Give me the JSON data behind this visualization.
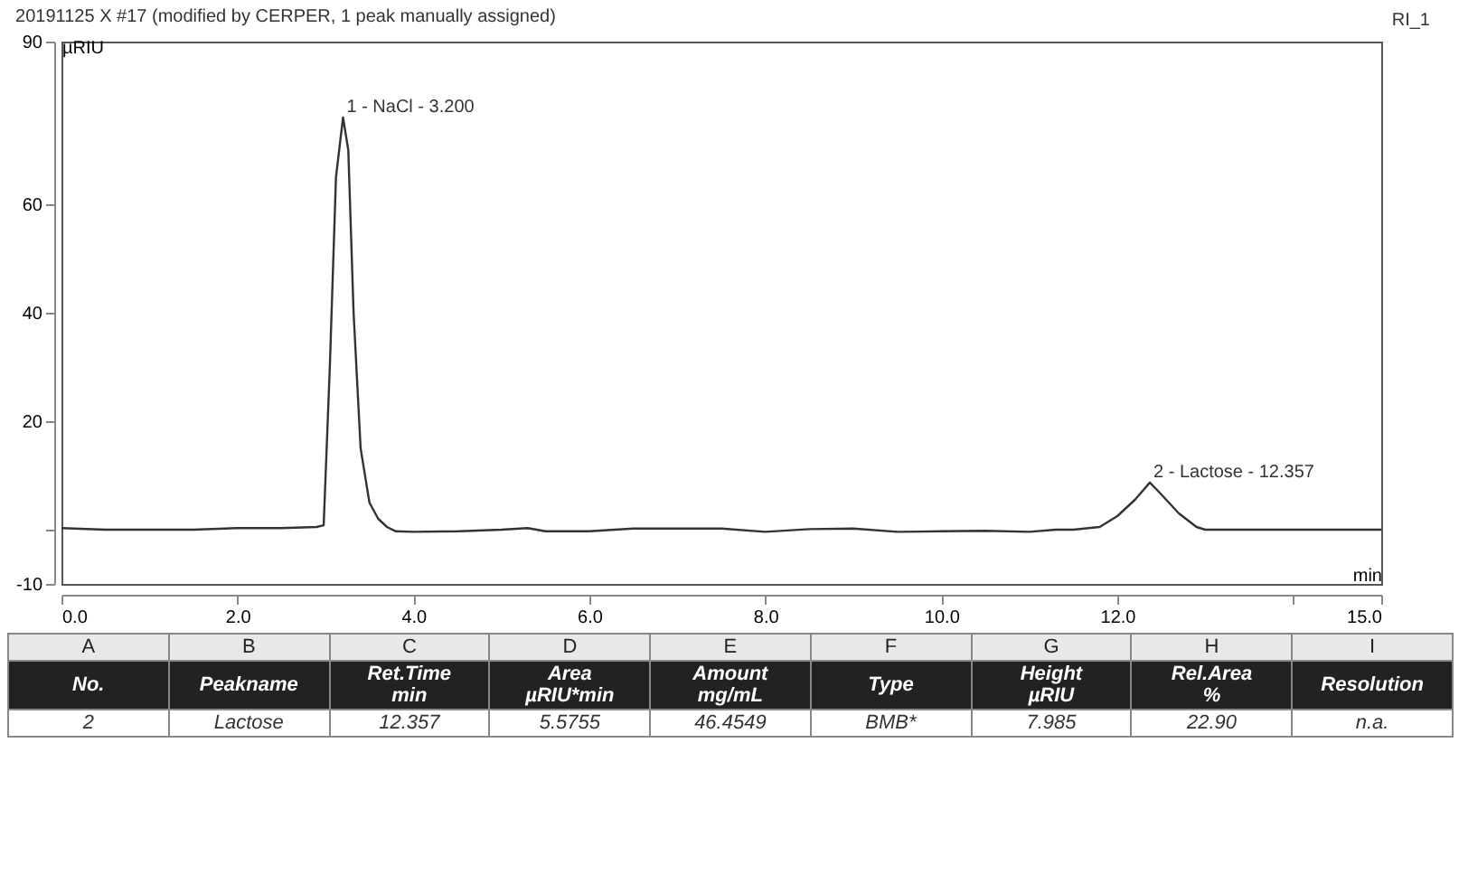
{
  "chart_data": {
    "type": "line",
    "title": "20191125 X #17 (modified by CERPER, 1 peak manually assigned)",
    "xlabel": "min",
    "ylabel": "µRIU",
    "x": [
      0,
      0.5,
      1,
      1.5,
      2,
      2.5,
      2.9,
      2.98,
      3.05,
      3.12,
      3.2,
      3.26,
      3.32,
      3.4,
      3.5,
      3.6,
      3.7,
      3.8,
      4.0,
      4.5,
      5.0,
      5.3,
      5.5,
      6.0,
      6.5,
      7.0,
      7.5,
      8.0,
      8.5,
      9.0,
      9.5,
      10.0,
      10.5,
      11.0,
      11.3,
      11.5,
      11.8,
      12.0,
      12.2,
      12.37,
      12.5,
      12.7,
      12.9,
      13.0,
      13.5,
      14.0,
      15.0
    ],
    "series": [
      {
        "color": "#333333",
        "values": [
          0.3,
          0,
          0,
          0,
          0.3,
          0.3,
          0.5,
          0.8,
          30,
          65,
          76,
          70,
          40,
          15,
          5,
          2,
          0.5,
          -0.3,
          -0.4,
          -0.3,
          0,
          0.3,
          -0.3,
          -0.3,
          0.2,
          0.2,
          0.2,
          -0.4,
          0.1,
          0.2,
          -0.4,
          -0.3,
          -0.2,
          -0.4,
          0,
          0,
          0.5,
          2.5,
          5.5,
          8.7,
          6.5,
          3,
          0.5,
          0,
          0,
          0,
          0
        ]
      }
    ],
    "xlim": [
      0,
      15
    ],
    "xticks": [
      {
        "value": 0,
        "label": "0.0"
      },
      {
        "value": 2,
        "label": "2.0"
      },
      {
        "value": 4,
        "label": "4.0"
      },
      {
        "value": 6,
        "label": "6.0"
      },
      {
        "value": 8,
        "label": "8.0"
      },
      {
        "value": 10,
        "label": "10.0"
      },
      {
        "value": 12,
        "label": "12.0"
      },
      {
        "value": 14,
        "label": null
      },
      {
        "value": 15,
        "label": "15.0"
      }
    ],
    "ylim": [
      -10,
      90
    ],
    "yticks": [
      -10,
      {
        "value": 0,
        "label": null
      },
      20,
      40,
      60,
      90
    ],
    "annotations": [
      {
        "text": "1 - NaCl - 3.200",
        "x": 3.2,
        "y": 76
      },
      {
        "text": "2 - Lactose - 12.357",
        "x": 12.37,
        "y": 8.7
      },
      "RI_1",
      "A",
      "B",
      "C",
      "D",
      "E",
      "F",
      "G",
      "H",
      "I",
      "No.",
      "Peakname",
      "Ret.Time\nmin",
      "Area\nµRIU*min",
      "Amount\nmg/mL",
      "Type",
      "Height\nµRIU",
      "Rel.Area\n%",
      "Resolution",
      "2",
      "Lactose",
      "12.357",
      "5.5755",
      "46.4549",
      "BMB*",
      "7.985",
      "22.90",
      "n.a."
    ],
    "marker": "none",
    "line_style": "solid",
    "legend": false,
    "grid": false
  }
}
